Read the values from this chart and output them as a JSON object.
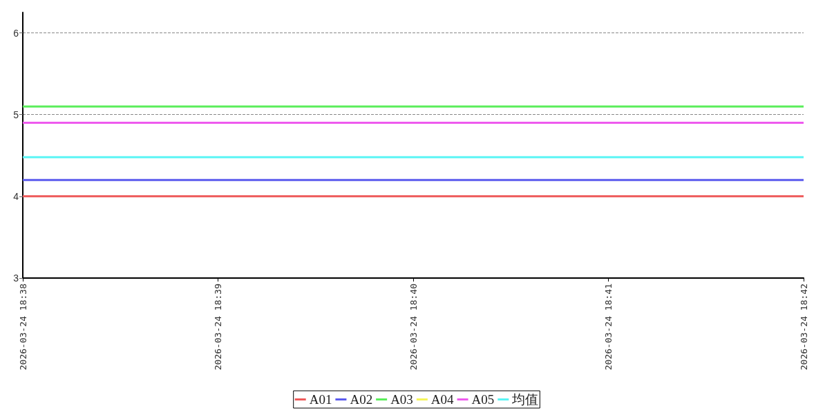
{
  "chart_data": {
    "type": "line",
    "categories": [
      "2026-03-24 18:38",
      "2026-03-24 18:39",
      "2026-03-24 18:40",
      "2026-03-24 18:41",
      "2026-03-24 18:42"
    ],
    "series": [
      {
        "name": "A01",
        "color": "#ee5a5a",
        "values": [
          4,
          4,
          4,
          4,
          4
        ]
      },
      {
        "name": "A02",
        "color": "#5a5aee",
        "values": [
          4.2,
          4.2,
          4.2,
          4.2,
          4.2
        ]
      },
      {
        "name": "A03",
        "color": "#5aee5a",
        "values": [
          5.1,
          5.1,
          5.1,
          5.1,
          5.1
        ]
      },
      {
        "name": "A04",
        "color": "#f5f55a",
        "values": [
          null,
          null,
          null,
          null,
          null
        ]
      },
      {
        "name": "A05",
        "color": "#ee5aee",
        "values": [
          4.9,
          4.9,
          4.9,
          4.9,
          4.9
        ]
      },
      {
        "name": "均值",
        "color": "#5af5f5",
        "values": [
          4.48,
          4.48,
          4.48,
          4.48,
          4.48
        ]
      }
    ],
    "ylim": [
      3,
      6.25
    ],
    "yticks": [
      3,
      4,
      5,
      6
    ],
    "grid": "y",
    "legend": "bottom",
    "marker": "none",
    "line_style": "solid"
  }
}
